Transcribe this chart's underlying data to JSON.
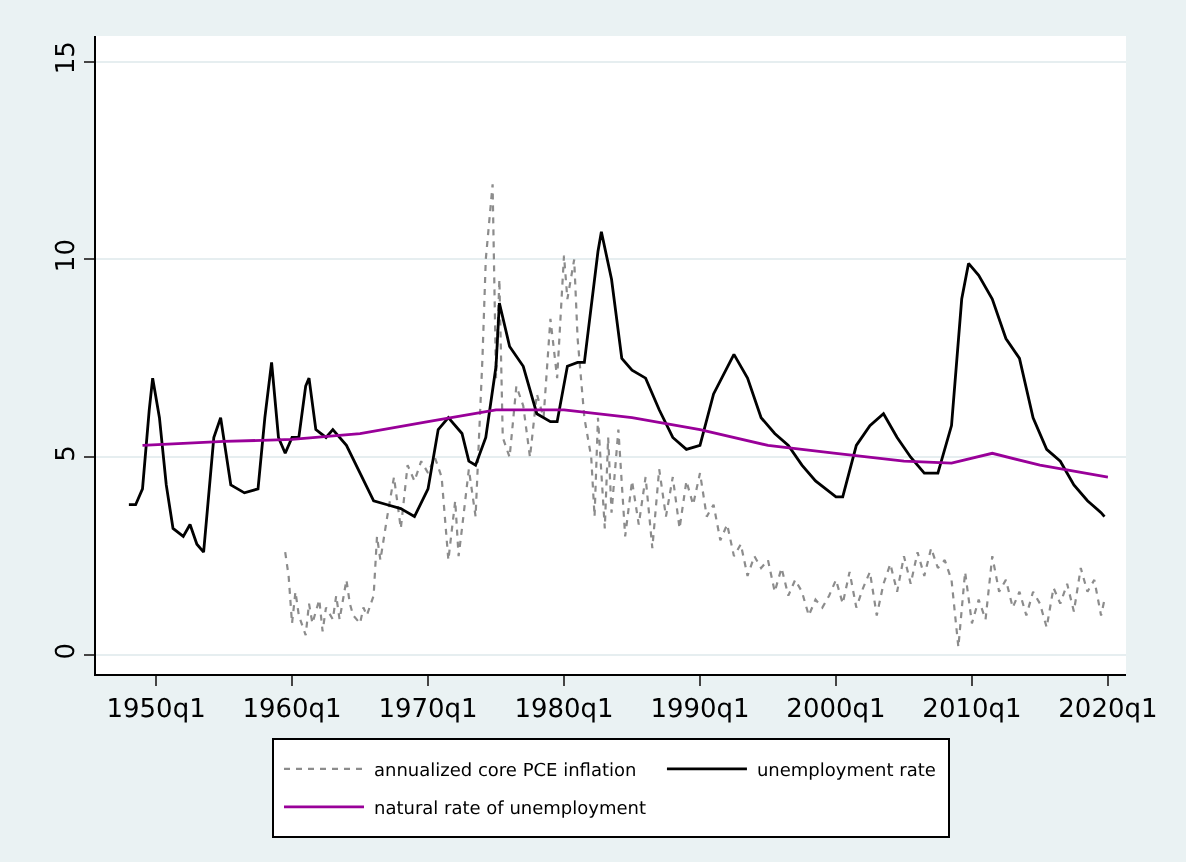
{
  "chart_data": {
    "type": "line",
    "xlim": [
      "1945-08",
      "2021-05"
    ],
    "ylim": [
      -0.48,
      15.65
    ],
    "xticks": [
      {
        "value": "1950-01",
        "label": "1950q1"
      },
      {
        "value": "1960-01",
        "label": "1960q1"
      },
      {
        "value": "1970-01",
        "label": "1970q1"
      },
      {
        "value": "1980-01",
        "label": "1980q1"
      },
      {
        "value": "1990-01",
        "label": "1990q1"
      },
      {
        "value": "2000-01",
        "label": "2000q1"
      },
      {
        "value": "2010-01",
        "label": "2010q1"
      },
      {
        "value": "2020-01",
        "label": "2020q1"
      }
    ],
    "yticks": [
      0,
      5,
      10,
      15
    ],
    "grid": "y",
    "legend": "bottom",
    "series": [
      {
        "name": "annualized core PCE inflation",
        "color": "#8c8c8c",
        "line_style": "dotted",
        "x": [
          "1959-07",
          "1959-10",
          "1960-01",
          "1960-04",
          "1960-07",
          "1961-01",
          "1961-04",
          "1961-07",
          "1962-01",
          "1962-04",
          "1962-07",
          "1963-01",
          "1963-04",
          "1963-07",
          "1964-01",
          "1964-04",
          "1964-07",
          "1965-01",
          "1965-04",
          "1965-07",
          "1966-01",
          "1966-04",
          "1966-07",
          "1967-01",
          "1967-07",
          "1968-01",
          "1968-07",
          "1969-01",
          "1969-07",
          "1970-01",
          "1970-07",
          "1971-01",
          "1971-07",
          "1972-01",
          "1972-04",
          "1972-07",
          "1973-01",
          "1973-07",
          "1974-01",
          "1974-04",
          "1974-10",
          "1975-01",
          "1975-04",
          "1975-07",
          "1976-01",
          "1976-07",
          "1977-01",
          "1977-07",
          "1978-01",
          "1978-07",
          "1979-01",
          "1979-07",
          "1980-01",
          "1980-04",
          "1980-10",
          "1981-01",
          "1981-07",
          "1982-01",
          "1982-04",
          "1982-07",
          "1983-01",
          "1983-04",
          "1983-07",
          "1984-01",
          "1984-07",
          "1985-01",
          "1985-07",
          "1986-01",
          "1986-07",
          "1987-01",
          "1987-07",
          "1988-01",
          "1988-07",
          "1989-01",
          "1989-07",
          "1990-01",
          "1990-07",
          "1991-01",
          "1991-07",
          "1992-01",
          "1992-07",
          "1993-01",
          "1993-07",
          "1994-01",
          "1994-07",
          "1995-01",
          "1995-07",
          "1996-01",
          "1996-07",
          "1997-01",
          "1997-07",
          "1998-01",
          "1998-07",
          "1999-01",
          "1999-07",
          "2000-01",
          "2000-07",
          "2001-01",
          "2001-07",
          "2002-01",
          "2002-07",
          "2003-01",
          "2003-07",
          "2004-01",
          "2004-07",
          "2005-01",
          "2005-07",
          "2006-01",
          "2006-07",
          "2007-01",
          "2007-07",
          "2008-01",
          "2008-07",
          "2009-01",
          "2009-07",
          "2010-01",
          "2010-07",
          "2011-01",
          "2011-07",
          "2012-01",
          "2012-07",
          "2013-01",
          "2013-07",
          "2014-01",
          "2014-07",
          "2015-01",
          "2015-07",
          "2016-01",
          "2016-07",
          "2017-01",
          "2017-07",
          "2018-01",
          "2018-07",
          "2019-01",
          "2019-07",
          "2019-10"
        ],
        "values": [
          2.6,
          2.0,
          0.8,
          1.6,
          1.0,
          0.5,
          1.3,
          0.8,
          1.4,
          0.6,
          1.2,
          0.9,
          1.5,
          0.9,
          1.9,
          1.3,
          1.0,
          0.8,
          1.2,
          1.0,
          1.5,
          3.0,
          2.4,
          3.5,
          4.5,
          3.2,
          4.8,
          4.4,
          4.9,
          4.6,
          5.0,
          4.5,
          2.4,
          3.9,
          2.5,
          3.2,
          4.7,
          3.5,
          7.5,
          10.0,
          11.9,
          7.0,
          9.5,
          5.5,
          5.0,
          6.8,
          6.3,
          5.0,
          6.6,
          6.0,
          8.5,
          7.0,
          10.1,
          9.0,
          10.0,
          8.0,
          6.0,
          5.0,
          3.5,
          6.0,
          3.2,
          5.5,
          3.6,
          5.7,
          3.0,
          4.4,
          3.3,
          4.5,
          2.7,
          4.7,
          3.5,
          4.5,
          3.2,
          4.4,
          3.8,
          4.6,
          3.5,
          3.8,
          2.9,
          3.3,
          2.5,
          2.8,
          2.0,
          2.5,
          2.2,
          2.4,
          1.6,
          2.2,
          1.5,
          1.9,
          1.6,
          1.0,
          1.4,
          1.2,
          1.5,
          1.9,
          1.3,
          2.1,
          1.2,
          1.7,
          2.1,
          1.0,
          1.8,
          2.3,
          1.6,
          2.5,
          1.8,
          2.6,
          2.0,
          2.7,
          2.2,
          2.4,
          1.9,
          0.2,
          2.1,
          0.8,
          1.4,
          0.9,
          2.5,
          1.6,
          1.9,
          1.2,
          1.6,
          1.0,
          1.6,
          1.3,
          0.7,
          1.7,
          1.3,
          1.8,
          1.1,
          2.2,
          1.6,
          1.9,
          1.0,
          1.4
        ]
      },
      {
        "name": "unemployment rate",
        "color": "#000000",
        "line_style": "solid",
        "x": [
          "1948-01",
          "1948-07",
          "1949-01",
          "1949-07",
          "1949-10",
          "1950-04",
          "1950-10",
          "1951-04",
          "1952-01",
          "1952-07",
          "1953-01",
          "1953-07",
          "1954-04",
          "1954-10",
          "1955-07",
          "1956-07",
          "1957-07",
          "1958-01",
          "1958-07",
          "1959-01",
          "1959-07",
          "1960-01",
          "1960-07",
          "1961-01",
          "1961-04",
          "1961-10",
          "1962-07",
          "1963-01",
          "1964-01",
          "1965-01",
          "1966-01",
          "1967-01",
          "1968-01",
          "1969-01",
          "1970-01",
          "1970-10",
          "1971-07",
          "1972-07",
          "1973-01",
          "1973-07",
          "1974-04",
          "1975-01",
          "1975-04",
          "1976-01",
          "1977-01",
          "1978-01",
          "1979-01",
          "1979-07",
          "1980-04",
          "1981-01",
          "1981-07",
          "1982-07",
          "1982-10",
          "1983-07",
          "1984-04",
          "1985-01",
          "1986-01",
          "1987-01",
          "1988-01",
          "1989-01",
          "1990-01",
          "1991-01",
          "1992-07",
          "1993-07",
          "1994-07",
          "1995-07",
          "1996-07",
          "1997-07",
          "1998-07",
          "2000-01",
          "2000-07",
          "2001-07",
          "2002-07",
          "2003-07",
          "2004-07",
          "2005-07",
          "2006-07",
          "2007-07",
          "2008-07",
          "2009-04",
          "2009-10",
          "2010-07",
          "2011-07",
          "2012-07",
          "2013-07",
          "2014-07",
          "2015-07",
          "2016-07",
          "2017-07",
          "2018-07",
          "2019-07",
          "2019-10"
        ],
        "values": [
          3.8,
          3.8,
          4.2,
          6.2,
          7.0,
          6.0,
          4.3,
          3.2,
          3.0,
          3.3,
          2.8,
          2.6,
          5.5,
          6.0,
          4.3,
          4.1,
          4.2,
          6.0,
          7.4,
          5.5,
          5.1,
          5.5,
          5.5,
          6.8,
          7.0,
          5.7,
          5.5,
          5.7,
          5.3,
          4.6,
          3.9,
          3.8,
          3.7,
          3.5,
          4.2,
          5.7,
          6.0,
          5.6,
          4.9,
          4.8,
          5.5,
          7.3,
          8.9,
          7.8,
          7.3,
          6.1,
          5.9,
          5.9,
          7.3,
          7.4,
          7.4,
          10.2,
          10.7,
          9.5,
          7.5,
          7.2,
          7.0,
          6.2,
          5.5,
          5.2,
          5.3,
          6.6,
          7.6,
          7.0,
          6.0,
          5.6,
          5.3,
          4.8,
          4.4,
          4.0,
          4.0,
          5.3,
          5.8,
          6.1,
          5.5,
          5.0,
          4.6,
          4.6,
          5.8,
          9.0,
          9.9,
          9.6,
          9.0,
          8.0,
          7.5,
          6.0,
          5.2,
          4.9,
          4.3,
          3.9,
          3.6,
          3.5
        ]
      },
      {
        "name": "natural rate of unemployment",
        "color": "#990099",
        "line_style": "solid",
        "x": [
          "1949-01",
          "1955-01",
          "1960-01",
          "1965-01",
          "1970-01",
          "1975-01",
          "1980-01",
          "1985-01",
          "1990-01",
          "1995-01",
          "2000-01",
          "2005-01",
          "2008-07",
          "2011-07",
          "2015-01",
          "2020-01"
        ],
        "values": [
          5.3,
          5.4,
          5.45,
          5.6,
          5.9,
          6.2,
          6.2,
          6.0,
          5.7,
          5.3,
          5.1,
          4.9,
          4.85,
          5.1,
          4.8,
          4.5
        ]
      }
    ]
  }
}
